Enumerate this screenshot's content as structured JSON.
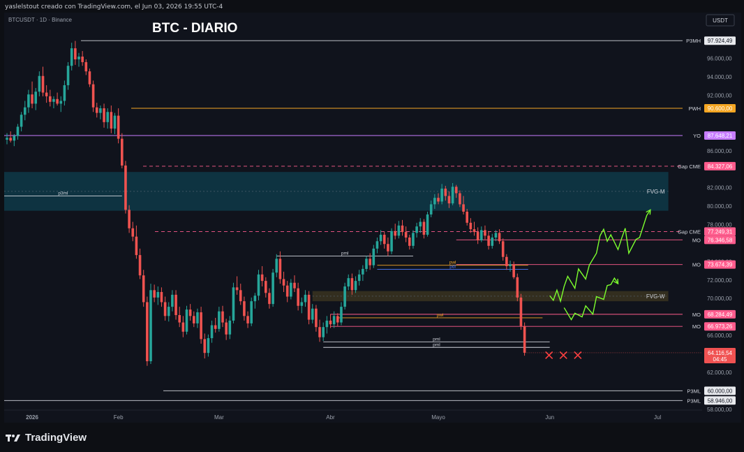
{
  "header": {
    "caption": "yaslelstout creado con TradingView.com, el Jun 03, 2026 19:55 UTC-4",
    "symbol_line": "BTCUSDT · 1D · Binance",
    "currency": "USDT"
  },
  "brand": {
    "name": "TradingView"
  },
  "chart_data": {
    "type": "candlestick",
    "title": "BTC - DIARIO",
    "symbol": "BTCUSDT",
    "interval": "1D",
    "exchange": "Binance",
    "currency": "USDT",
    "ylim": [
      57000,
      99000
    ],
    "grid": false,
    "y_ticks": [
      "96.000,00",
      "94.000,00",
      "92.000,00",
      "86.000,00",
      "82.000,00",
      "80.000,00",
      "78.000,00",
      "74.000,00",
      "72.000,00",
      "70.000,00",
      "66.000,00",
      "62.000,00",
      "58.000,00"
    ],
    "y_tick_values": [
      96000,
      94000,
      92000,
      86000,
      82000,
      80000,
      78000,
      74000,
      72000,
      70000,
      66000,
      62000,
      58000
    ],
    "x_ticks": [
      {
        "label": "2026",
        "day": 7
      },
      {
        "label": "Feb",
        "day": 31
      },
      {
        "label": "Mar",
        "day": 59
      },
      {
        "label": "Abr",
        "day": 90
      },
      {
        "label": "Mayo",
        "day": 120
      },
      {
        "label": "Jun",
        "day": 151
      },
      {
        "label": "Jul",
        "day": 181
      }
    ],
    "candles_ohlc": [
      [
        87200,
        87900,
        86700,
        87400
      ],
      [
        87400,
        88100,
        86900,
        87100
      ],
      [
        87100,
        87800,
        86500,
        87600
      ],
      [
        87600,
        88900,
        87200,
        88600
      ],
      [
        88600,
        90200,
        88100,
        89900
      ],
      [
        89900,
        91400,
        89300,
        90700
      ],
      [
        90700,
        92600,
        90100,
        92100
      ],
      [
        92100,
        93500,
        90600,
        91100
      ],
      [
        91100,
        92800,
        90400,
        92400
      ],
      [
        92400,
        94600,
        91900,
        94100
      ],
      [
        94100,
        95100,
        91900,
        92300
      ],
      [
        92300,
        93100,
        91200,
        91900
      ],
      [
        91900,
        92600,
        90800,
        91300
      ],
      [
        91300,
        91900,
        90600,
        91600
      ],
      [
        91600,
        92300,
        90900,
        91100
      ],
      [
        91100,
        91900,
        90200,
        91400
      ],
      [
        91400,
        93600,
        90900,
        93100
      ],
      [
        93100,
        95600,
        92600,
        95200
      ],
      [
        95200,
        97700,
        94700,
        97100
      ],
      [
        97100,
        97900,
        95300,
        95900
      ],
      [
        95900,
        96600,
        95100,
        96200
      ],
      [
        96200,
        96800,
        95200,
        95600
      ],
      [
        95600,
        95900,
        94200,
        94600
      ],
      [
        94600,
        94900,
        92900,
        93200
      ],
      [
        93200,
        93600,
        90200,
        90700
      ],
      [
        90700,
        91200,
        89600,
        90100
      ],
      [
        90100,
        90900,
        89400,
        90600
      ],
      [
        90600,
        91100,
        88500,
        89100
      ],
      [
        89100,
        90600,
        88400,
        90200
      ],
      [
        90200,
        90900,
        87900,
        88400
      ],
      [
        88400,
        90100,
        87800,
        89800
      ],
      [
        89800,
        90600,
        86800,
        87300
      ],
      [
        87300,
        87900,
        84100,
        84400
      ],
      [
        84400,
        84900,
        79200,
        79600
      ],
      [
        79600,
        80100,
        77100,
        77600
      ],
      [
        77600,
        78300,
        76200,
        76700
      ],
      [
        76700,
        77900,
        74300,
        74700
      ],
      [
        74700,
        75400,
        72100,
        72500
      ],
      [
        72500,
        73100,
        69100,
        69600
      ],
      [
        69600,
        70200,
        62700,
        63200
      ],
      [
        63200,
        71600,
        62900,
        70900
      ],
      [
        70900,
        71500,
        69600,
        70100
      ],
      [
        70100,
        71300,
        69300,
        70700
      ],
      [
        70700,
        71200,
        69100,
        69600
      ],
      [
        69600,
        70200,
        67600,
        68100
      ],
      [
        68100,
        69600,
        67500,
        69100
      ],
      [
        69100,
        70900,
        68600,
        70400
      ],
      [
        70400,
        70900,
        67700,
        68200
      ],
      [
        68200,
        69100,
        66900,
        67400
      ],
      [
        67400,
        68100,
        65800,
        66400
      ],
      [
        66400,
        69200,
        66100,
        68800
      ],
      [
        68800,
        69400,
        67600,
        68100
      ],
      [
        68100,
        68600,
        66900,
        67300
      ],
      [
        67300,
        68900,
        66800,
        68500
      ],
      [
        68500,
        69100,
        65100,
        65600
      ],
      [
        65600,
        66200,
        63500,
        64100
      ],
      [
        64100,
        66100,
        63700,
        65700
      ],
      [
        65700,
        67600,
        65200,
        67100
      ],
      [
        67100,
        67900,
        66300,
        66700
      ],
      [
        66700,
        69100,
        66400,
        68600
      ],
      [
        68600,
        69200,
        66900,
        67400
      ],
      [
        67400,
        67800,
        65500,
        66100
      ],
      [
        66100,
        68100,
        65600,
        67600
      ],
      [
        67600,
        71700,
        67300,
        71200
      ],
      [
        71200,
        72400,
        70400,
        70900
      ],
      [
        70900,
        71600,
        69300,
        69700
      ],
      [
        69700,
        70200,
        67600,
        68100
      ],
      [
        68100,
        68600,
        66800,
        67300
      ],
      [
        67300,
        70100,
        67000,
        69700
      ],
      [
        69700,
        70600,
        68900,
        70300
      ],
      [
        70300,
        73100,
        69800,
        72600
      ],
      [
        72600,
        73500,
        71300,
        71900
      ],
      [
        71900,
        72300,
        70100,
        70600
      ],
      [
        70600,
        71100,
        68900,
        69400
      ],
      [
        69400,
        73200,
        69100,
        72800
      ],
      [
        72800,
        74800,
        72300,
        74300
      ],
      [
        74300,
        75100,
        71600,
        72100
      ],
      [
        72100,
        72900,
        70700,
        71400
      ],
      [
        71400,
        71900,
        69600,
        70200
      ],
      [
        70200,
        72100,
        69900,
        71700
      ],
      [
        71700,
        72500,
        70700,
        71100
      ],
      [
        71100,
        71700,
        68700,
        69200
      ],
      [
        69200,
        70100,
        68400,
        69600
      ],
      [
        69600,
        70900,
        69100,
        70400
      ],
      [
        70400,
        70800,
        67200,
        67700
      ],
      [
        67700,
        69400,
        67300,
        68900
      ],
      [
        68900,
        69300,
        66400,
        66900
      ],
      [
        66900,
        67700,
        65300,
        65800
      ],
      [
        65800,
        67400,
        65400,
        66900
      ],
      [
        66900,
        68100,
        66200,
        67600
      ],
      [
        67600,
        68300,
        66800,
        67200
      ],
      [
        67200,
        68600,
        66800,
        68100
      ],
      [
        68100,
        68400,
        67000,
        67400
      ],
      [
        67400,
        69600,
        67100,
        69100
      ],
      [
        69100,
        71700,
        68800,
        71300
      ],
      [
        71300,
        72600,
        70900,
        72200
      ],
      [
        72200,
        72700,
        70400,
        70900
      ],
      [
        70900,
        72400,
        70600,
        71900
      ],
      [
        71900,
        73100,
        71400,
        72600
      ],
      [
        72600,
        73600,
        71900,
        73200
      ],
      [
        73200,
        74600,
        72900,
        74300
      ],
      [
        74300,
        74900,
        73100,
        73600
      ],
      [
        73600,
        75800,
        73300,
        75400
      ],
      [
        75400,
        76600,
        74900,
        76200
      ],
      [
        76200,
        77400,
        75800,
        76900
      ],
      [
        76900,
        77200,
        75400,
        75900
      ],
      [
        75900,
        76600,
        74600,
        75100
      ],
      [
        75100,
        77600,
        74800,
        77300
      ],
      [
        77300,
        78100,
        76400,
        76800
      ],
      [
        76800,
        78400,
        76500,
        77900
      ],
      [
        77900,
        78500,
        76800,
        77200
      ],
      [
        77200,
        77800,
        76100,
        76600
      ],
      [
        76600,
        76900,
        75300,
        75700
      ],
      [
        75700,
        77400,
        75400,
        77100
      ],
      [
        77100,
        78200,
        76600,
        77800
      ],
      [
        77800,
        78700,
        77100,
        78300
      ],
      [
        78300,
        78600,
        76500,
        76900
      ],
      [
        76900,
        79400,
        76700,
        79100
      ],
      [
        79100,
        80600,
        78800,
        80200
      ],
      [
        80200,
        81300,
        79700,
        80900
      ],
      [
        80900,
        81400,
        80200,
        80500
      ],
      [
        80500,
        82400,
        80200,
        81900
      ],
      [
        81900,
        82200,
        80600,
        81100
      ],
      [
        81100,
        81600,
        79800,
        80300
      ],
      [
        80300,
        82500,
        80100,
        82100
      ],
      [
        82100,
        82300,
        80900,
        81400
      ],
      [
        81400,
        81700,
        79900,
        80200
      ],
      [
        80200,
        81100,
        79100,
        79400
      ],
      [
        79400,
        79700,
        77900,
        78200
      ],
      [
        78200,
        78700,
        77100,
        77500
      ],
      [
        77500,
        78300,
        76800,
        77200
      ],
      [
        77200,
        77700,
        75900,
        76300
      ],
      [
        76300,
        77800,
        76100,
        77400
      ],
      [
        77400,
        77900,
        76400,
        76800
      ],
      [
        76800,
        77300,
        75300,
        75700
      ],
      [
        75700,
        77000,
        75400,
        76600
      ],
      [
        76600,
        77400,
        76200,
        77100
      ],
      [
        77100,
        77500,
        75900,
        76200
      ],
      [
        76200,
        76500,
        74100,
        74500
      ],
      [
        74500,
        74800,
        73100,
        73500
      ],
      [
        73500,
        74100,
        72900,
        73700
      ],
      [
        73700,
        74000,
        72100,
        72300
      ],
      [
        72300,
        72700,
        69700,
        70100
      ],
      [
        70100,
        70500,
        66600,
        67000
      ],
      [
        67000,
        67400,
        63800,
        64116
      ]
    ],
    "horizontal_levels": [
      {
        "label": "P3MH",
        "value": 97924.49,
        "price_text": "97.924,49",
        "color": "#d1d4dc",
        "style": "solid"
      },
      {
        "label": "PWH",
        "value": 90600,
        "price_text": "90.600,00",
        "color": "#f5a623",
        "style": "solid"
      },
      {
        "label": "YO",
        "value": 87648.21,
        "price_text": "87.648,21",
        "color": "#c77dff",
        "style": "solid"
      },
      {
        "label": "Gap CME",
        "value": 84327.06,
        "price_text": "84.327,06",
        "color": "#ff5c8d",
        "style": "dashed"
      },
      {
        "label": "Gap CME",
        "value": 77249.31,
        "price_text": "77.249,31",
        "color": "#ff5c8d",
        "style": "dashed"
      },
      {
        "label": "MO",
        "value": 76346.58,
        "price_text": "76.346,58",
        "color": "#ff5c8d",
        "style": "solid"
      },
      {
        "label": "MO",
        "value": 73674.39,
        "price_text": "73.674,39",
        "color": "#ff5c8d",
        "style": "solid"
      },
      {
        "label": "MO",
        "value": 68284.49,
        "price_text": "68.284,49",
        "color": "#ff5c8d",
        "style": "solid"
      },
      {
        "label": "MO",
        "value": 66973.26,
        "price_text": "66.973,26",
        "color": "#ff5c8d",
        "style": "solid"
      },
      {
        "label": "P3ML",
        "value": 60000,
        "price_text": "60.000,00",
        "color": "#d1d4dc",
        "style": "solid"
      },
      {
        "label": "P3ML",
        "value": 58946,
        "price_text": "58.946,00",
        "color": "#d1d4dc",
        "style": "solid"
      }
    ],
    "zones": [
      {
        "label": "FVG-M",
        "from": 79500,
        "to": 83700,
        "start_day": -13,
        "end_day": 184,
        "color": "#0e3a48"
      },
      {
        "label": "FVG-W",
        "from": 69700,
        "to": 70800,
        "start_day": 85,
        "end_day": 184,
        "color": "#3a3420"
      }
    ],
    "segments": [
      {
        "label": "p3ml",
        "value": 81100,
        "start_day": -13,
        "end_day": 32,
        "color": "#d1d4dc"
      },
      {
        "label": "pml",
        "value": 74600,
        "start_day": 75,
        "end_day": 113,
        "color": "#d1d4dc"
      },
      {
        "label": "pwl",
        "value": 73600,
        "start_day": 103,
        "end_day": 145,
        "color": "#f5a623"
      },
      {
        "label": "pdl",
        "value": 73150,
        "start_day": 103,
        "end_day": 145,
        "color": "#4f7cff"
      },
      {
        "label": "pwl",
        "value": 67900,
        "start_day": 92,
        "end_day": 149,
        "color": "#f5a623"
      },
      {
        "label": "pml",
        "value": 65300,
        "start_day": 88,
        "end_day": 151,
        "color": "#d1d4dc"
      },
      {
        "label": "pml",
        "value": 64700,
        "start_day": 88,
        "end_day": 151,
        "color": "#d1d4dc"
      }
    ],
    "projection_paths": [
      {
        "color": "#7dff2e",
        "points": [
          [
            151,
            70300
          ],
          [
            152,
            69800
          ],
          [
            153,
            70900
          ],
          [
            154,
            69700
          ],
          [
            155,
            71300
          ],
          [
            156,
            72400
          ],
          [
            158,
            71100
          ],
          [
            159,
            73200
          ],
          [
            161,
            72100
          ],
          [
            162,
            73600
          ],
          [
            164,
            74900
          ],
          [
            165,
            76800
          ],
          [
            166,
            77500
          ],
          [
            167,
            76200
          ],
          [
            168,
            76900
          ],
          [
            170,
            75300
          ],
          [
            171,
            76500
          ],
          [
            172,
            77600
          ],
          [
            173,
            74900
          ],
          [
            175,
            76400
          ],
          [
            176,
            76600
          ],
          [
            178,
            79000
          ],
          [
            179,
            79600
          ]
        ]
      },
      {
        "color": "#7dff2e",
        "points": [
          [
            155,
            69000
          ],
          [
            157,
            67700
          ],
          [
            158,
            68400
          ],
          [
            160,
            68000
          ],
          [
            161,
            69200
          ],
          [
            163,
            68300
          ],
          [
            164,
            70200
          ],
          [
            166,
            69900
          ],
          [
            167,
            71400
          ],
          [
            168,
            71500
          ],
          [
            169,
            72200
          ],
          [
            170,
            71600
          ]
        ]
      }
    ],
    "markers": [
      {
        "type": "x",
        "day": 151,
        "value": 63850,
        "color": "#ff4040"
      },
      {
        "type": "x",
        "day": 155,
        "value": 63850,
        "color": "#ff4040"
      },
      {
        "type": "x",
        "day": 159,
        "value": 63850,
        "color": "#ff4040"
      }
    ],
    "last_price": {
      "value": 64116.54,
      "price_text": "64.116,54",
      "countdown": "04:45",
      "color": "#f05252"
    },
    "up_color": "#26a69a",
    "down_color": "#ef5350"
  }
}
